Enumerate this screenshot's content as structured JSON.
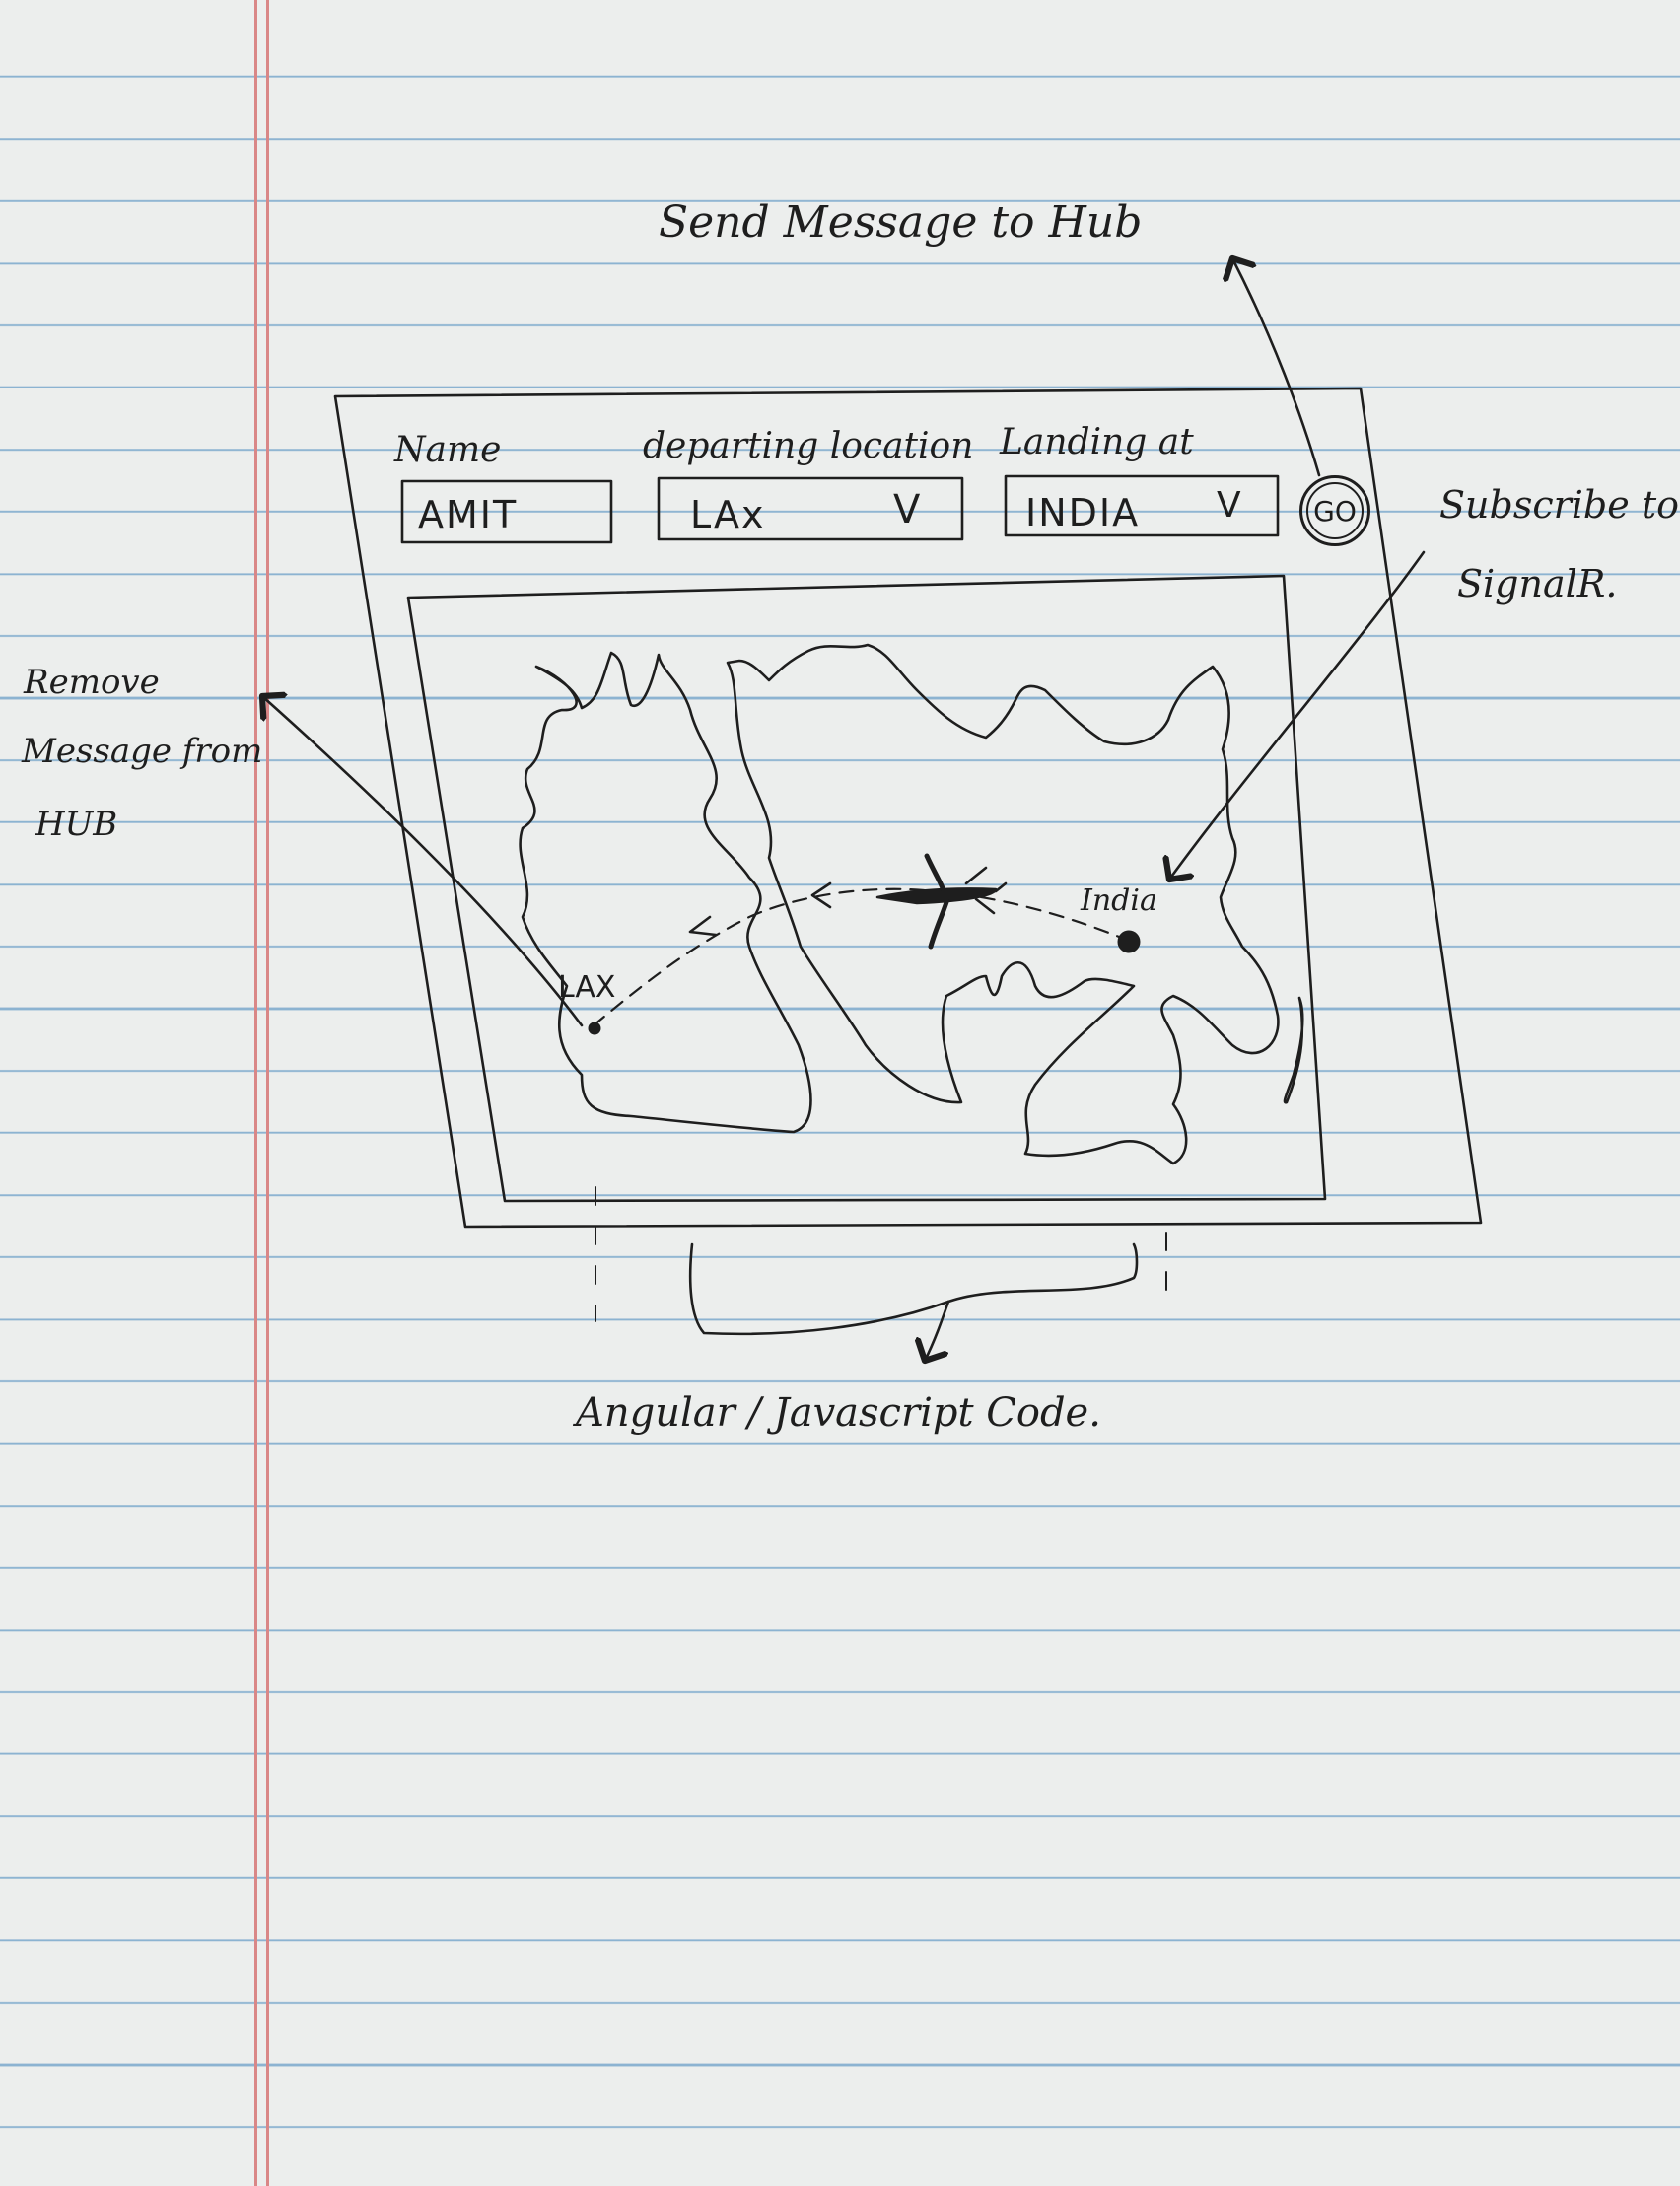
{
  "annotations": {
    "send_message": "Send Message to Hub",
    "subscribe_line1": "Subscribe to",
    "subscribe_line2": "SignalR.",
    "remove_line1": "Remove",
    "remove_line2": "Message from",
    "remove_line3": "HUB",
    "code_label": "Angular / Javascript Code."
  },
  "form": {
    "name_label": "Name",
    "name_value": "AMIT",
    "departing_label": "departing location",
    "departing_value": "LAx",
    "landing_label": "Landing at",
    "landing_value": "INDIA",
    "dropdown_glyph": "V",
    "go_label": "GO"
  },
  "map": {
    "origin_label": "LAX",
    "destination_label": "India"
  },
  "icons": {
    "plane": "airplane-icon",
    "go": "circle-button"
  }
}
